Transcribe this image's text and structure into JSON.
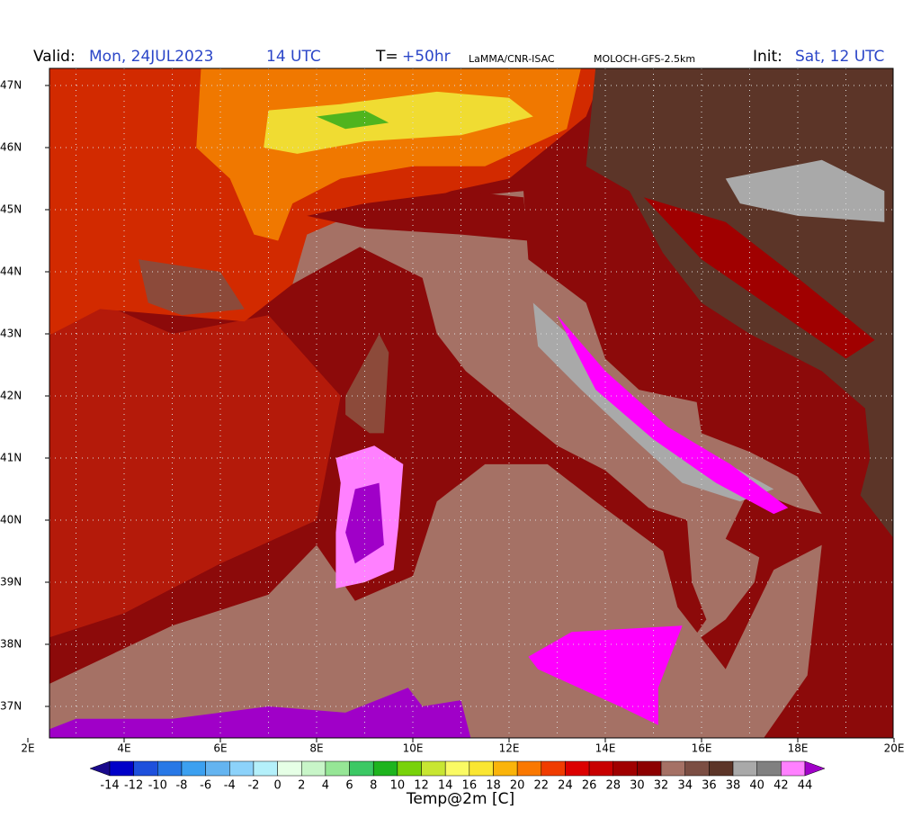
{
  "header": {
    "valid_label": "Valid:",
    "valid_date": "Mon, 24JUL2023",
    "valid_time": "14 UTC",
    "step_label": "T=",
    "step_value": "+50hr",
    "source": "LaMMA/CNR-ISAC",
    "model": "MOLOCH-GFS-2.5km",
    "init_label": "Init:",
    "init_value": "Sat, 12 UTC"
  },
  "map": {
    "lat_labels": [
      "47N",
      "46N",
      "45N",
      "44N",
      "43N",
      "42N",
      "41N",
      "40N",
      "39N",
      "38N",
      "37N"
    ],
    "lon_labels": [
      "2E",
      "4E",
      "6E",
      "8E",
      "10E",
      "12E",
      "14E",
      "16E",
      "18E",
      "20E"
    ]
  },
  "colorbar": {
    "title": "Temp@2m [C]",
    "ticks": [
      -14,
      -12,
      -10,
      -8,
      -6,
      -4,
      -2,
      0,
      2,
      4,
      6,
      8,
      10,
      12,
      14,
      16,
      18,
      20,
      22,
      24,
      26,
      28,
      30,
      32,
      34,
      36,
      38,
      40,
      42,
      44
    ],
    "colors": [
      "#1a0a8c",
      "#0000c8",
      "#1e50dc",
      "#2878e6",
      "#3ca0f0",
      "#64b4f0",
      "#8cd2fa",
      "#b4f0fa",
      "#e6ffe6",
      "#c8f5c8",
      "#96e696",
      "#3cc864",
      "#1eb41e",
      "#78d20a",
      "#c8e632",
      "#fafa64",
      "#fae632",
      "#fab40a",
      "#fa7800",
      "#f03c00",
      "#dc0000",
      "#c80000",
      "#a00000",
      "#8c0000",
      "#a57165",
      "#7b4e43",
      "#5c3528",
      "#a9a9a9",
      "#808080",
      "#ff80ff",
      "#ff00ff",
      "#a000c8"
    ]
  }
}
